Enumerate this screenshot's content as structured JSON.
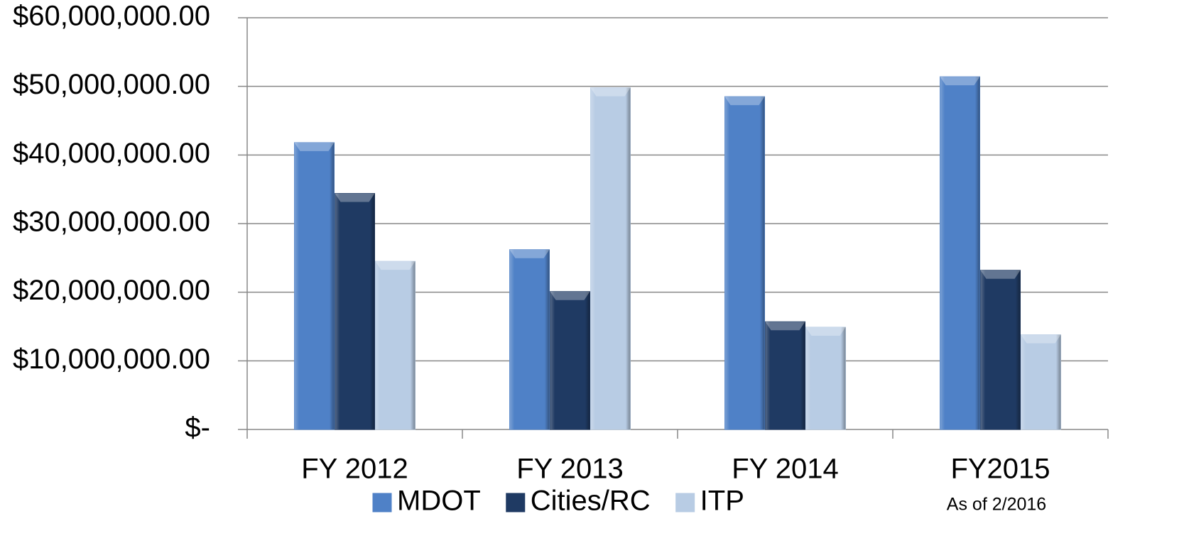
{
  "chart_data": {
    "type": "bar",
    "categories": [
      "FY 2012",
      "FY 2013",
      "FY 2014",
      "FY2015"
    ],
    "series": [
      {
        "name": "MDOT",
        "color": "#4f81c7",
        "values": [
          41800000,
          26200000,
          48500000,
          51400000
        ]
      },
      {
        "name": "Cities/RC",
        "color": "#1f3a63",
        "values": [
          34400000,
          20100000,
          15700000,
          23200000
        ]
      },
      {
        "name": "ITP",
        "color": "#b8cce4",
        "values": [
          24500000,
          49800000,
          14900000,
          13800000
        ]
      }
    ],
    "annotation": "As of 2/2016",
    "ylim": [
      0,
      60000000
    ],
    "yticks": [
      {
        "value": 0,
        "label": "$-"
      },
      {
        "value": 10000000,
        "label": "$10,000,000.00"
      },
      {
        "value": 20000000,
        "label": "$20,000,000.00"
      },
      {
        "value": 30000000,
        "label": "$30,000,000.00"
      },
      {
        "value": 40000000,
        "label": "$40,000,000.00"
      },
      {
        "value": 50000000,
        "label": "$50,000,000.00"
      },
      {
        "value": 60000000,
        "label": "$60,000,000.00"
      }
    ],
    "grid": true,
    "legend": "bottom"
  }
}
